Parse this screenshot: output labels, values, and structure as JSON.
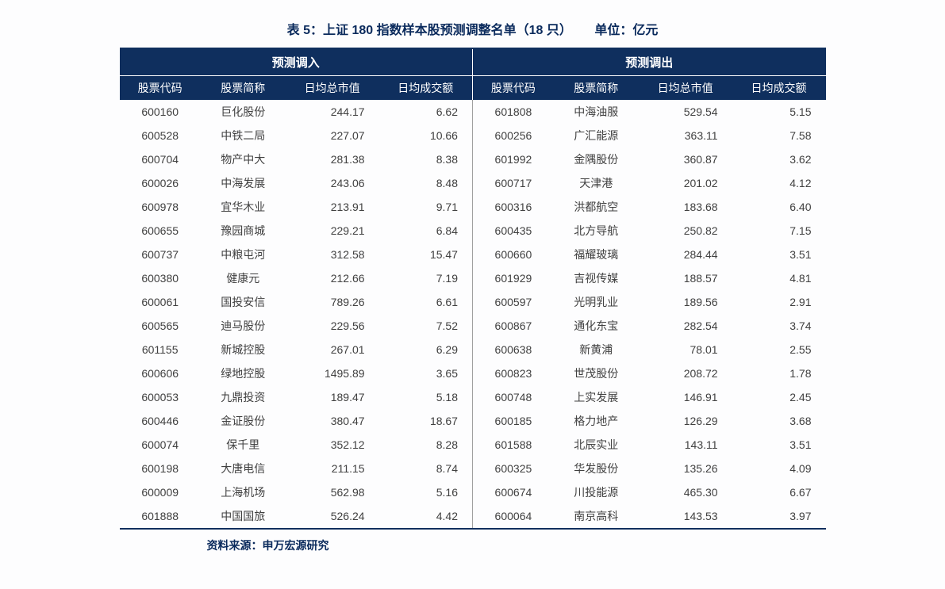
{
  "title_main": "表 5：上证 180 指数样本股预测调整名单（18 只）",
  "title_unit": "单位：亿元",
  "source_line": "资料来源：申万宏源研究",
  "group_headers": {
    "left": "预测调入",
    "right": "预测调出"
  },
  "col_headers": [
    "股票代码",
    "股票简称",
    "日均总市值",
    "日均成交额",
    "股票代码",
    "股票简称",
    "日均总市值",
    "日均成交额"
  ],
  "colors": {
    "header_bg": "#0f2f5e",
    "header_text": "#ffffff",
    "title_text": "#0a2a5c",
    "body_text": "#404040",
    "page_bg": "#fdfdfe",
    "divider": "#a0a0a0"
  },
  "typography": {
    "title_fontsize": 16,
    "header_fontsize": 14,
    "body_fontsize": 14,
    "font_family": "Microsoft YaHei"
  },
  "rows": [
    {
      "in_code": "600160",
      "in_name": "巨化股份",
      "in_cap": "244.17",
      "in_vol": "6.62",
      "out_code": "601808",
      "out_name": "中海油服",
      "out_cap": "529.54",
      "out_vol": "5.15"
    },
    {
      "in_code": "600528",
      "in_name": "中铁二局",
      "in_cap": "227.07",
      "in_vol": "10.66",
      "out_code": "600256",
      "out_name": "广汇能源",
      "out_cap": "363.11",
      "out_vol": "7.58"
    },
    {
      "in_code": "600704",
      "in_name": "物产中大",
      "in_cap": "281.38",
      "in_vol": "8.38",
      "out_code": "601992",
      "out_name": "金隅股份",
      "out_cap": "360.87",
      "out_vol": "3.62"
    },
    {
      "in_code": "600026",
      "in_name": "中海发展",
      "in_cap": "243.06",
      "in_vol": "8.48",
      "out_code": "600717",
      "out_name": "天津港",
      "out_cap": "201.02",
      "out_vol": "4.12"
    },
    {
      "in_code": "600978",
      "in_name": "宜华木业",
      "in_cap": "213.91",
      "in_vol": "9.71",
      "out_code": "600316",
      "out_name": "洪都航空",
      "out_cap": "183.68",
      "out_vol": "6.40"
    },
    {
      "in_code": "600655",
      "in_name": "豫园商城",
      "in_cap": "229.21",
      "in_vol": "6.84",
      "out_code": "600435",
      "out_name": "北方导航",
      "out_cap": "250.82",
      "out_vol": "7.15"
    },
    {
      "in_code": "600737",
      "in_name": "中粮屯河",
      "in_cap": "312.58",
      "in_vol": "15.47",
      "out_code": "600660",
      "out_name": "福耀玻璃",
      "out_cap": "284.44",
      "out_vol": "3.51"
    },
    {
      "in_code": "600380",
      "in_name": "健康元",
      "in_cap": "212.66",
      "in_vol": "7.19",
      "out_code": "601929",
      "out_name": "吉视传媒",
      "out_cap": "188.57",
      "out_vol": "4.81"
    },
    {
      "in_code": "600061",
      "in_name": "国投安信",
      "in_cap": "789.26",
      "in_vol": "6.61",
      "out_code": "600597",
      "out_name": "光明乳业",
      "out_cap": "189.56",
      "out_vol": "2.91"
    },
    {
      "in_code": "600565",
      "in_name": "迪马股份",
      "in_cap": "229.56",
      "in_vol": "7.52",
      "out_code": "600867",
      "out_name": "通化东宝",
      "out_cap": "282.54",
      "out_vol": "3.74"
    },
    {
      "in_code": "601155",
      "in_name": "新城控股",
      "in_cap": "267.01",
      "in_vol": "6.29",
      "out_code": "600638",
      "out_name": "新黄浦",
      "out_cap": "78.01",
      "out_vol": "2.55"
    },
    {
      "in_code": "600606",
      "in_name": "绿地控股",
      "in_cap": "1495.89",
      "in_vol": "3.65",
      "out_code": "600823",
      "out_name": "世茂股份",
      "out_cap": "208.72",
      "out_vol": "1.78"
    },
    {
      "in_code": "600053",
      "in_name": "九鼎投资",
      "in_cap": "189.47",
      "in_vol": "5.18",
      "out_code": "600748",
      "out_name": "上实发展",
      "out_cap": "146.91",
      "out_vol": "2.45"
    },
    {
      "in_code": "600446",
      "in_name": "金证股份",
      "in_cap": "380.47",
      "in_vol": "18.67",
      "out_code": "600185",
      "out_name": "格力地产",
      "out_cap": "126.29",
      "out_vol": "3.68"
    },
    {
      "in_code": "600074",
      "in_name": "保千里",
      "in_cap": "352.12",
      "in_vol": "8.28",
      "out_code": "601588",
      "out_name": "北辰实业",
      "out_cap": "143.11",
      "out_vol": "3.51"
    },
    {
      "in_code": "600198",
      "in_name": "大唐电信",
      "in_cap": "211.15",
      "in_vol": "8.74",
      "out_code": "600325",
      "out_name": "华发股份",
      "out_cap": "135.26",
      "out_vol": "4.09"
    },
    {
      "in_code": "600009",
      "in_name": "上海机场",
      "in_cap": "562.98",
      "in_vol": "5.16",
      "out_code": "600674",
      "out_name": "川投能源",
      "out_cap": "465.30",
      "out_vol": "6.67"
    },
    {
      "in_code": "601888",
      "in_name": "中国国旅",
      "in_cap": "526.24",
      "in_vol": "4.42",
      "out_code": "600064",
      "out_name": "南京高科",
      "out_cap": "143.53",
      "out_vol": "3.97"
    }
  ]
}
